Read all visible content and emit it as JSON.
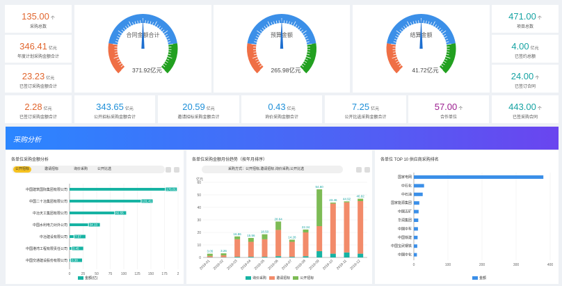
{
  "left_stats": [
    {
      "value": "135.00",
      "unit": "个",
      "label": "采购总数"
    },
    {
      "value": "346.41",
      "unit": "亿元",
      "label": "年度计划采购金额合计"
    },
    {
      "value": "23.23",
      "unit": "亿元",
      "label": "已签订采购金额合计"
    }
  ],
  "right_stats": [
    {
      "value": "471.00",
      "unit": "个",
      "label": "项目总数"
    },
    {
      "value": "4.00",
      "unit": "亿元",
      "label": "已签约总额"
    },
    {
      "value": "24.00",
      "unit": "个",
      "label": "已签订合同"
    }
  ],
  "gauges": [
    {
      "title": "合同金额合计",
      "value_text": "371.92亿元",
      "level": 0.5
    },
    {
      "title": "预算金额",
      "value_text": "265.98亿元",
      "level": 0.5
    },
    {
      "title": "结算金额",
      "value_text": "41.72亿元",
      "level": 0.5
    }
  ],
  "bottom_stats": [
    {
      "value": "2.28",
      "unit": "亿元",
      "label": "已签订采购金额合计"
    },
    {
      "value": "343.65",
      "unit": "亿元",
      "label": "公开招标采购金额合计"
    },
    {
      "value": "20.59",
      "unit": "亿元",
      "label": "邀请招标采购金额合计"
    },
    {
      "value": "0.43",
      "unit": "亿元",
      "label": "询价采购金额合计"
    },
    {
      "value": "7.25",
      "unit": "亿元",
      "label": "公开比选采购金额合计"
    },
    {
      "value": "57.00",
      "unit": "个",
      "label": "合作单位"
    },
    {
      "value": "443.00",
      "unit": "个",
      "label": "已签采购合同"
    }
  ],
  "banner": {
    "title": "采购分析"
  },
  "panel1": {
    "title": "各单位采购金额分析",
    "tabs": [
      "公开招标",
      "邀请招标",
      "询价采购",
      "公开比选"
    ],
    "active_tab": 0,
    "legend": "金额(亿)"
  },
  "panel2": {
    "title": "各单位采购金额月份趋势（按年月排序）",
    "tabs_text": "采购方式：公开招标,邀请招标,询价采购,公开比选",
    "legend": [
      "询价采购",
      "邀请招标",
      "公开招标"
    ]
  },
  "panel3": {
    "title": "各单位 TOP 10 供应商采购排名",
    "legend": "金额"
  },
  "colors": {
    "blue": "#3b8fe8",
    "orange": "#ef6f45",
    "green": "#22a020",
    "teal": "#17b3a3",
    "bar_green": "#7dbb55",
    "bar_orange": "#f28b6a"
  },
  "chart_data": [
    {
      "type": "bar",
      "orientation": "horizontal",
      "categories": [
        "中国建筑国际集团有限公司",
        "中国二十冶集团有限公司",
        "中冶天工集团有限公司",
        "中国水利电力对外公司",
        "中冶建设有限公司",
        "中国港湾工程有限责任公司",
        "中国交通建设股份有限公司"
      ],
      "values": [
        176.01,
        131.41,
        82.55,
        34.13,
        7.57,
        3.45,
        0.38
      ],
      "value_labels": [
        "176.01",
        "131.41",
        "82.55",
        "34.13",
        "7.57",
        "3.45",
        "0.38"
      ],
      "xlim": [
        0,
        200
      ],
      "xticks": [
        "0",
        "25",
        "50",
        "75",
        "100",
        "125",
        "150",
        "175",
        "2"
      ],
      "legend": [
        "金额(亿)"
      ]
    },
    {
      "type": "bar",
      "stacked": true,
      "categories": [
        "2019-01",
        "2019-02",
        "2019-03",
        "2019-04",
        "2019-05",
        "2019-06",
        "2019-07",
        "2019-08",
        "2019-09",
        "2019-10",
        "2019-11",
        "2019-12"
      ],
      "series": [
        {
          "name": "询价采购",
          "values": [
            0.2,
            0.2,
            0.5,
            0.5,
            0.5,
            1,
            0.5,
            1,
            5,
            3,
            4,
            3
          ]
        },
        {
          "name": "邀请招标",
          "values": [
            1.0,
            1.5,
            14,
            12,
            14,
            21,
            12,
            19,
            20,
            40,
            40,
            42
          ]
        },
        {
          "name": "公开招标",
          "values": [
            1.8,
            1.6,
            2.3,
            3.1,
            4.0,
            6.7,
            1.7,
            2.3,
            29.4,
            0.8,
            0.8,
            1.9
          ]
        }
      ],
      "totals_labels": [
        "3.05",
        "3.26",
        "16.86",
        "15.56",
        "18.50",
        "28.64",
        "14.28",
        "22.34",
        "54.60",
        "43.46",
        "44.92",
        "46.92"
      ],
      "ylabel": "亿元",
      "ylim": [
        0,
        60
      ],
      "yticks": [
        0,
        10,
        20,
        30,
        40,
        50,
        60
      ],
      "legend": [
        "询价采购",
        "邀请招标",
        "公开招标"
      ]
    },
    {
      "type": "bar",
      "orientation": "horizontal",
      "categories": [
        "国家电网",
        "中石化",
        "中石油",
        "国家能源集团",
        "中国五矿",
        "华润集团",
        "中国中车",
        "中国铁建",
        "中国宝武钢铁",
        "中国中化"
      ],
      "values": [
        380,
        30,
        26,
        16,
        14,
        13,
        12,
        11,
        10,
        9
      ],
      "xlim": [
        0,
        400
      ],
      "xticks": [
        0,
        100,
        200,
        300,
        400
      ],
      "legend": [
        "金额"
      ]
    }
  ]
}
